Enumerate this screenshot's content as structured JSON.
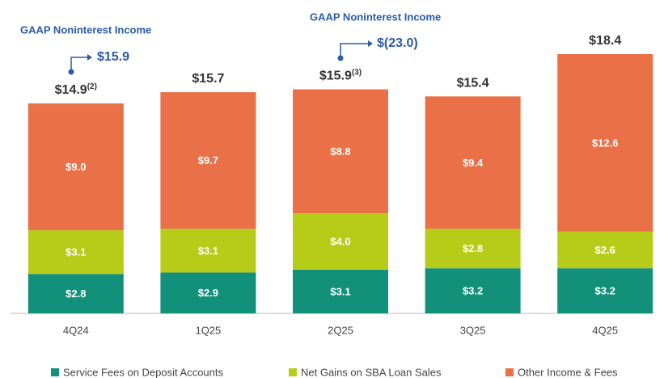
{
  "chart_data": {
    "type": "stacked_bar",
    "categories": [
      "4Q24",
      "1Q25",
      "2Q25",
      "3Q25",
      "4Q25"
    ],
    "series": [
      {
        "name": "Service Fees on Deposit Accounts",
        "color": "#12907a",
        "values": [
          2.8,
          2.9,
          3.1,
          3.2,
          3.2
        ],
        "value_labels": [
          "$2.8",
          "$2.9",
          "$3.1",
          "$3.2",
          "$3.2"
        ]
      },
      {
        "name": "Net Gains on SBA Loan Sales",
        "color": "#b6cc18",
        "values": [
          3.1,
          3.1,
          4.0,
          2.8,
          2.6
        ],
        "value_labels": [
          "$3.1",
          "$3.1",
          "$4.0",
          "$2.8",
          "$2.6"
        ]
      },
      {
        "name": "Other Income & Fees",
        "color": "#ea7048",
        "values": [
          9.0,
          9.7,
          8.8,
          9.4,
          12.6
        ],
        "value_labels": [
          "$9.0",
          "$9.7",
          "$8.8",
          "$9.4",
          "$12.6"
        ]
      }
    ],
    "totals": [
      14.9,
      15.7,
      15.9,
      15.4,
      18.4
    ],
    "total_labels": [
      "$14.9",
      "$15.7",
      "$15.9",
      "$15.4",
      "$18.4"
    ],
    "total_notes": [
      "(2)",
      null,
      "(3)",
      null,
      null
    ],
    "annotations": [
      {
        "title": "GAAP Noninterest Income",
        "value": "$15.9"
      },
      {
        "title": "GAAP Noninterest Income",
        "value": "$(23.0)"
      }
    ]
  }
}
